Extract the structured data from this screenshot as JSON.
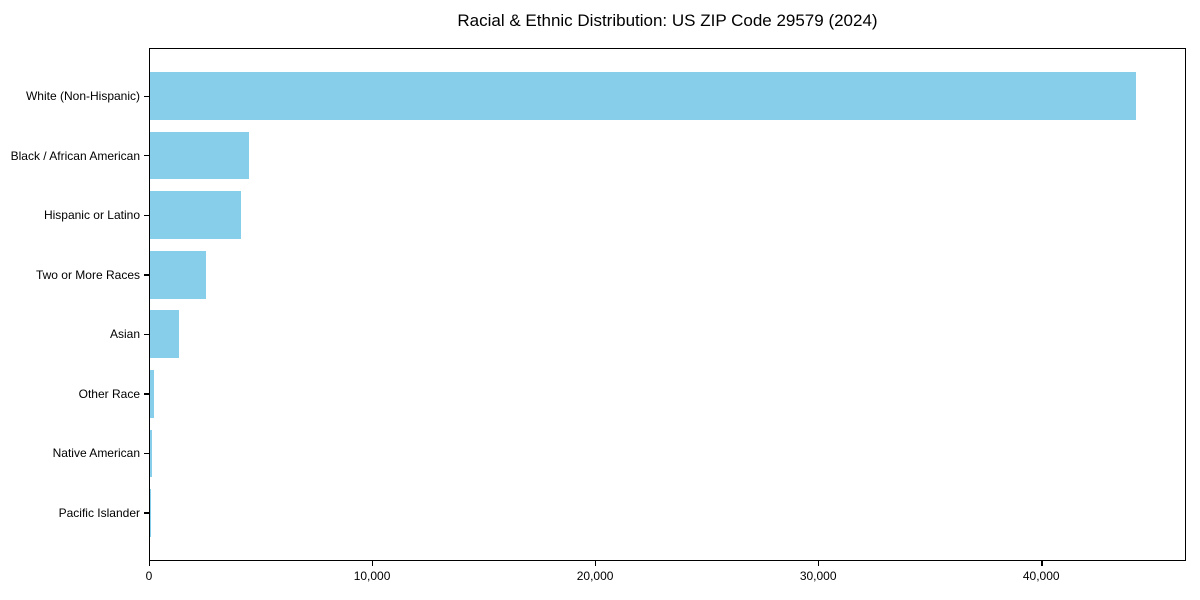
{
  "chart_data": {
    "type": "bar",
    "orientation": "horizontal",
    "title": "Racial & Ethnic Distribution: US ZIP Code 29579 (2024)",
    "categories": [
      "White (Non-Hispanic)",
      "Black / African American",
      "Hispanic or Latino",
      "Two or More Races",
      "Asian",
      "Other Race",
      "Native American",
      "Pacific Islander"
    ],
    "values": [
      44190,
      4440,
      4090,
      2520,
      1280,
      190,
      90,
      15
    ],
    "bar_color": "#87CEEB",
    "frame_color": "#000000",
    "text_color": "#000000",
    "background_color": "#ffffff",
    "xlim": [
      0,
      46400
    ],
    "x_ticks": [
      0,
      10000,
      20000,
      30000,
      40000
    ],
    "x_tick_labels": [
      "0",
      "10,000",
      "20,000",
      "30,000",
      "40,000"
    ],
    "xlabel": "",
    "ylabel": "",
    "grid": false,
    "legend": "none",
    "bar_width_fraction": 0.8
  }
}
